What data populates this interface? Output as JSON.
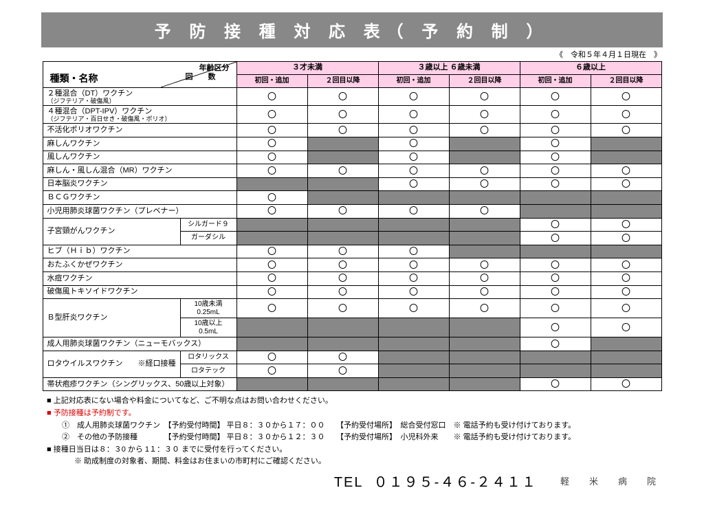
{
  "title": "予 防 接 種 対 応 表（ 予 約 制 ）",
  "asof": "《　令和５年４月１日現在　》",
  "header": {
    "diag1": "年齢区分",
    "diag2": "回　　数",
    "diag3": "種類・名称",
    "groups": [
      "３才未満",
      "３歳以上 ６歳未満",
      "６歳以上"
    ],
    "subs": [
      "初回・追加",
      "２回目以降",
      "初回・追加",
      "２回目以降",
      "初回・追加",
      "２回目以降"
    ]
  },
  "colors": {
    "pink": "#ffd0e8",
    "gray": "#888888"
  },
  "mark": "〇",
  "rows": [
    {
      "name": "２種混合（DT）ワクチン",
      "note": "（ジフテリア・破傷風）",
      "cells": [
        "o",
        "o",
        "o",
        "o",
        "o",
        "o"
      ]
    },
    {
      "name": "４種混合（DPT-IPV）ワクチン",
      "note": "（ジフテリア・百日せき・破傷風・ポリオ）",
      "cells": [
        "o",
        "o",
        "o",
        "o",
        "o",
        "o"
      ]
    },
    {
      "name": "不活化ポリオワクチン",
      "cells": [
        "o",
        "o",
        "o",
        "o",
        "o",
        "o"
      ]
    },
    {
      "name": "麻しんワクチン",
      "cells": [
        "o",
        "g",
        "o",
        "g",
        "o",
        "g"
      ]
    },
    {
      "name": "風しんワクチン",
      "cells": [
        "o",
        "g",
        "o",
        "g",
        "o",
        "g"
      ]
    },
    {
      "name": "麻しん・風しん混合（MR）ワクチン",
      "cells": [
        "o",
        "o",
        "o",
        "o",
        "o",
        "o"
      ]
    },
    {
      "name": "日本脳炎ワクチン",
      "cells": [
        "g",
        "g",
        "o",
        "o",
        "o",
        "o"
      ]
    },
    {
      "name": "ＢＣＧワクチン",
      "cells": [
        "o",
        "g",
        "g",
        "g",
        "g",
        "g"
      ]
    },
    {
      "name": "小児用肺炎球菌ワクチン（プレベナー）",
      "cells": [
        "o",
        "o",
        "o",
        "o",
        "g",
        "g"
      ]
    },
    {
      "name": "子宮頸がんワクチン",
      "subs": [
        "シルガード９",
        "ガーダシル"
      ],
      "subcells": [
        [
          "g",
          "g",
          "g",
          "g",
          "o",
          "o"
        ],
        [
          "g",
          "g",
          "g",
          "g",
          "o",
          "o"
        ]
      ]
    },
    {
      "name": "ヒブ（Ｈｉｂ）ワクチン",
      "cells": [
        "o",
        "o",
        "o",
        "g",
        "g",
        "g"
      ]
    },
    {
      "name": "おたふくかぜワクチン",
      "cells": [
        "o",
        "o",
        "o",
        "o",
        "o",
        "o"
      ]
    },
    {
      "name": "水痘ワクチン",
      "cells": [
        "o",
        "o",
        "o",
        "o",
        "o",
        "o"
      ]
    },
    {
      "name": "破傷風トキソイドワクチン",
      "cells": [
        "o",
        "o",
        "o",
        "o",
        "o",
        "o"
      ]
    },
    {
      "name": "Ｂ型肝炎ワクチン",
      "subs": [
        "10歳未満　0.25mL",
        "10歳以上　0.5mL"
      ],
      "subcells": [
        [
          "o",
          "o",
          "o",
          "o",
          "o",
          "o"
        ],
        [
          "g",
          "g",
          "g",
          "g",
          "o",
          "o"
        ]
      ]
    },
    {
      "name": "成人用肺炎球菌ワクチン（ニューモバックス）",
      "cells": [
        "g",
        "g",
        "g",
        "g",
        "o",
        "g"
      ]
    },
    {
      "name": "ロタウイルスワクチン　　※経口接種",
      "subs": [
        "ロタリックス",
        "ロタテック"
      ],
      "subcells": [
        [
          "o",
          "o",
          "g",
          "g",
          "g",
          "g"
        ],
        [
          "o",
          "o",
          "g",
          "g",
          "g",
          "g"
        ]
      ]
    },
    {
      "name": "帯状疱疹ワクチン（シングリックス、50歳以上対象）",
      "cells": [
        "g",
        "g",
        "g",
        "g",
        "o",
        "o"
      ]
    }
  ],
  "notes": {
    "n1": "■ 上記対応表にない場合や料金についてなど、ご不明な点はお問い合わせください。",
    "n2": "■ 予防接種は予約制です。",
    "n3": "①　成人用肺炎球菌ワクチン　【予約受付時間】 平日８：３０から１７：００　　【予約受付場所】　総合受付窓口　※ 電話予約も受け付けております。",
    "n4": "②　その他の予防接種　　　　【予約受付時間】 平日８：３０から１２：３０　　【予約受付場所】　小児科外来　　※ 電話予約も受け付けております。",
    "n5": "■ 接種日当日は８：３0 から 1１：３０ までに受付を行ってください。",
    "n6": "※ 助成制度の対象者、期間、料金はお住まいの市町村にご確認ください。"
  },
  "tel_label": "TEL",
  "tel": "０１９５-４６-２４１１",
  "hospital": "軽　米　病　院"
}
